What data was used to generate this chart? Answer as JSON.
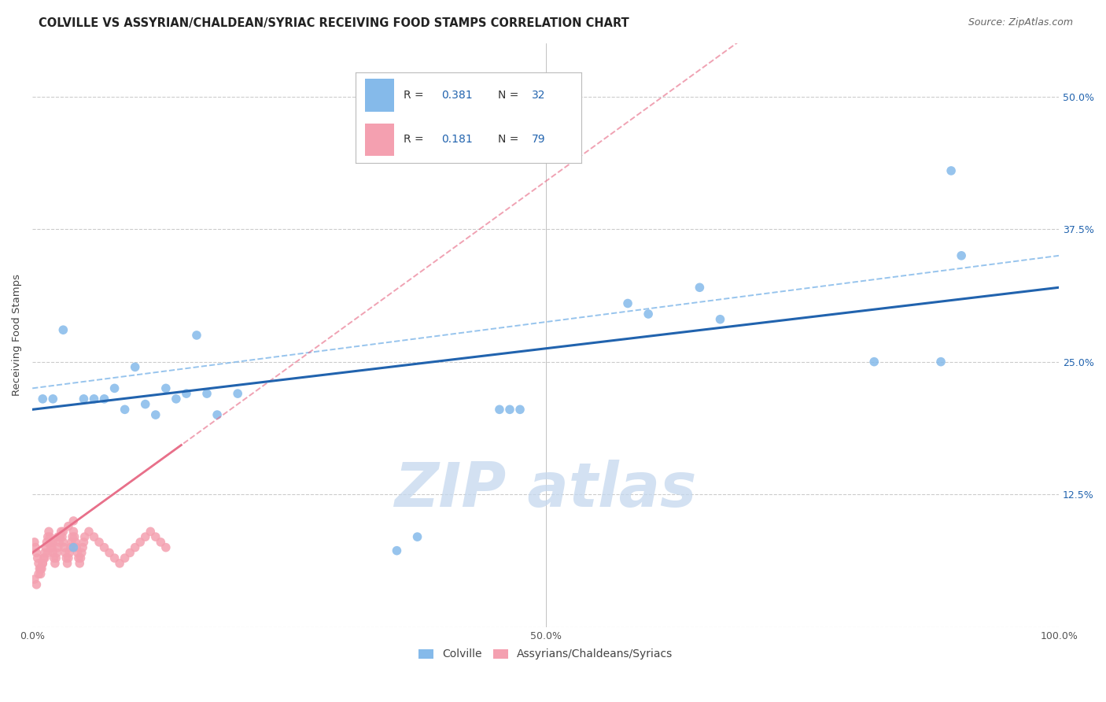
{
  "title": "COLVILLE VS ASSYRIAN/CHALDEAN/SYRIAC RECEIVING FOOD STAMPS CORRELATION CHART",
  "source": "Source: ZipAtlas.com",
  "ylabel": "Receiving Food Stamps",
  "xlim": [
    0.0,
    1.0
  ],
  "ylim": [
    0.0,
    0.55
  ],
  "colville_color": "#85BAEA",
  "assyrian_color": "#F4A0B0",
  "blue_line_color": "#2163AE",
  "pink_line_color": "#E8708A",
  "watermark_color": "#C5D8EE",
  "R_colville": 0.381,
  "N_colville": 32,
  "R_assyrian": 0.181,
  "N_assyrian": 79,
  "col_intercept": 0.205,
  "col_slope": 0.115,
  "ass_intercept": 0.07,
  "ass_slope": 0.7,
  "title_fontsize": 10.5,
  "source_fontsize": 9,
  "background_color": "#FFFFFF",
  "grid_color": "#CCCCCC",
  "colville_x": [
    0.01,
    0.02,
    0.03,
    0.05,
    0.07,
    0.08,
    0.09,
    0.1,
    0.11,
    0.12,
    0.13,
    0.14,
    0.15,
    0.16,
    0.17,
    0.18,
    0.2,
    0.455,
    0.465,
    0.475,
    0.58,
    0.6,
    0.65,
    0.67,
    0.82,
    0.885,
    0.895,
    0.905,
    0.355,
    0.375,
    0.04,
    0.06
  ],
  "colville_y": [
    0.215,
    0.215,
    0.28,
    0.215,
    0.215,
    0.225,
    0.205,
    0.245,
    0.21,
    0.2,
    0.225,
    0.215,
    0.22,
    0.275,
    0.22,
    0.2,
    0.22,
    0.205,
    0.205,
    0.205,
    0.305,
    0.295,
    0.32,
    0.29,
    0.25,
    0.25,
    0.43,
    0.35,
    0.072,
    0.085,
    0.075,
    0.215
  ],
  "assyrian_x": [
    0.002,
    0.003,
    0.004,
    0.005,
    0.006,
    0.007,
    0.008,
    0.009,
    0.01,
    0.011,
    0.012,
    0.013,
    0.014,
    0.015,
    0.016,
    0.017,
    0.018,
    0.019,
    0.02,
    0.021,
    0.022,
    0.023,
    0.024,
    0.025,
    0.026,
    0.027,
    0.028,
    0.029,
    0.03,
    0.031,
    0.032,
    0.033,
    0.034,
    0.035,
    0.036,
    0.037,
    0.038,
    0.039,
    0.04,
    0.041,
    0.042,
    0.043,
    0.044,
    0.045,
    0.046,
    0.047,
    0.048,
    0.049,
    0.05,
    0.051,
    0.055,
    0.06,
    0.065,
    0.07,
    0.075,
    0.08,
    0.085,
    0.09,
    0.095,
    0.1,
    0.105,
    0.11,
    0.115,
    0.12,
    0.125,
    0.13,
    0.002,
    0.004,
    0.006,
    0.008,
    0.01,
    0.012,
    0.015,
    0.018,
    0.02,
    0.025,
    0.03,
    0.035,
    0.04
  ],
  "assyrian_y": [
    0.08,
    0.075,
    0.07,
    0.065,
    0.06,
    0.055,
    0.05,
    0.055,
    0.06,
    0.065,
    0.07,
    0.075,
    0.08,
    0.085,
    0.09,
    0.085,
    0.08,
    0.075,
    0.07,
    0.065,
    0.06,
    0.065,
    0.07,
    0.075,
    0.08,
    0.085,
    0.09,
    0.085,
    0.08,
    0.075,
    0.07,
    0.065,
    0.06,
    0.065,
    0.07,
    0.075,
    0.08,
    0.085,
    0.09,
    0.085,
    0.08,
    0.075,
    0.07,
    0.065,
    0.06,
    0.065,
    0.07,
    0.075,
    0.08,
    0.085,
    0.09,
    0.085,
    0.08,
    0.075,
    0.07,
    0.065,
    0.06,
    0.065,
    0.07,
    0.075,
    0.08,
    0.085,
    0.09,
    0.085,
    0.08,
    0.075,
    0.045,
    0.04,
    0.05,
    0.055,
    0.06,
    0.065,
    0.07,
    0.075,
    0.08,
    0.085,
    0.09,
    0.095,
    0.1
  ]
}
